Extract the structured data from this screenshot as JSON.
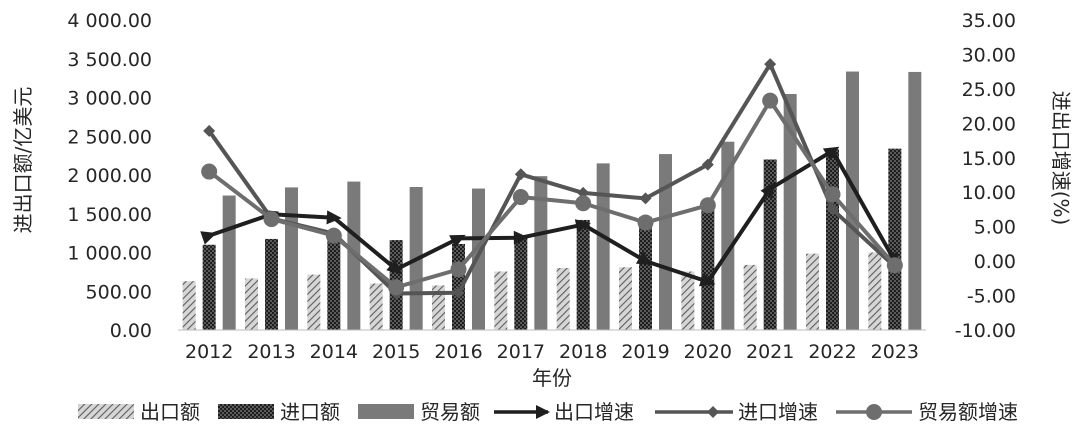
{
  "chart_data": {
    "type": "bar",
    "categories": [
      "2012",
      "2013",
      "2014",
      "2015",
      "2016",
      "2017",
      "2018",
      "2019",
      "2020",
      "2021",
      "2022",
      "2023"
    ],
    "xlabel": "年份",
    "ylabel": "进出口额/亿美元",
    "y2label": "进出口增速(%)",
    "ylim": [
      0,
      4000
    ],
    "y2lim": [
      -10,
      35
    ],
    "yticks": [
      "0.00",
      "500.00",
      "1 000.00",
      "1 500.00",
      "2 000.00",
      "2 500.00",
      "3 000.00",
      "3 500.00",
      "4 000.00"
    ],
    "y2ticks": [
      "-10.00",
      "-5.00",
      "0.00",
      "5.00",
      "10.00",
      "15.00",
      "20.00",
      "25.00",
      "30.00",
      "35.00"
    ],
    "grid": false,
    "legend_position": "bottom",
    "series": [
      {
        "name": "出口额",
        "kind": "bar",
        "axis": "left",
        "pattern": "hatch",
        "color": "#8a8a8a",
        "values": [
          630,
          665,
          715,
          600,
          575,
          755,
          800,
          810,
          755,
          840,
          985,
          1000
        ]
      },
      {
        "name": "进口额",
        "kind": "bar",
        "axis": "left",
        "pattern": "crosshatch",
        "color": "#3a3a3a",
        "values": [
          1100,
          1175,
          1180,
          1160,
          1110,
          1215,
          1420,
          1460,
          1580,
          2200,
          2330,
          2340
        ]
      },
      {
        "name": "贸易额",
        "kind": "bar",
        "axis": "left",
        "pattern": "solid",
        "color": "#7a7a7a",
        "values": [
          1735,
          1840,
          1915,
          1845,
          1825,
          1985,
          2150,
          2270,
          2430,
          3045,
          3335,
          3330
        ]
      },
      {
        "name": "出口增速",
        "kind": "line",
        "axis": "right",
        "marker": "arrow",
        "color": "#1f1f1f",
        "values": [
          3.7,
          6.8,
          6.3,
          -1.2,
          3.3,
          3.4,
          5.3,
          0.0,
          -3.0,
          10.5,
          16.0,
          0.0
        ]
      },
      {
        "name": "进口增速",
        "kind": "line",
        "axis": "right",
        "marker": "diamond",
        "color": "#555555",
        "values": [
          18.9,
          6.2,
          4.0,
          -4.7,
          -4.6,
          12.6,
          9.9,
          9.1,
          14.0,
          28.6,
          7.5,
          -0.8
        ]
      },
      {
        "name": "贸易额增速",
        "kind": "line",
        "axis": "right",
        "marker": "circle",
        "color": "#6e6e6e",
        "values": [
          13.0,
          6.1,
          3.7,
          -3.8,
          -1.2,
          9.3,
          8.4,
          5.6,
          8.1,
          23.3,
          9.7,
          -0.6
        ]
      }
    ]
  }
}
